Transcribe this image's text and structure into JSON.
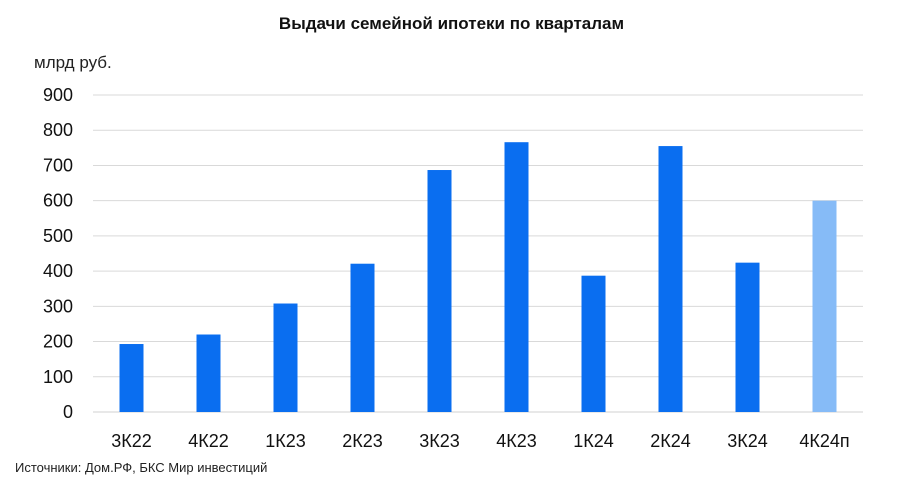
{
  "chart_data": {
    "type": "bar",
    "title": "Выдачи семейной ипотеки по кварталам",
    "ylabel": "млрд руб.",
    "xlabel": "",
    "categories": [
      "3К22",
      "4К22",
      "1К23",
      "2К23",
      "3К23",
      "4К23",
      "1К24",
      "2К24",
      "3К24",
      "4К24п"
    ],
    "values": [
      193,
      220,
      308,
      421,
      687,
      766,
      387,
      755,
      424,
      600
    ],
    "forecast": [
      false,
      false,
      false,
      false,
      false,
      false,
      false,
      false,
      false,
      true
    ],
    "ylim": [
      0,
      900
    ],
    "yticks": [
      0,
      100,
      200,
      300,
      400,
      500,
      600,
      700,
      800,
      900
    ],
    "grid": true,
    "colors": {
      "actual": "#0a6ef0",
      "forecast": "#86bbf7",
      "grid": "#d9d9d9"
    }
  },
  "source": "Источники: Дом.РФ, БКС Мир инвестиций"
}
